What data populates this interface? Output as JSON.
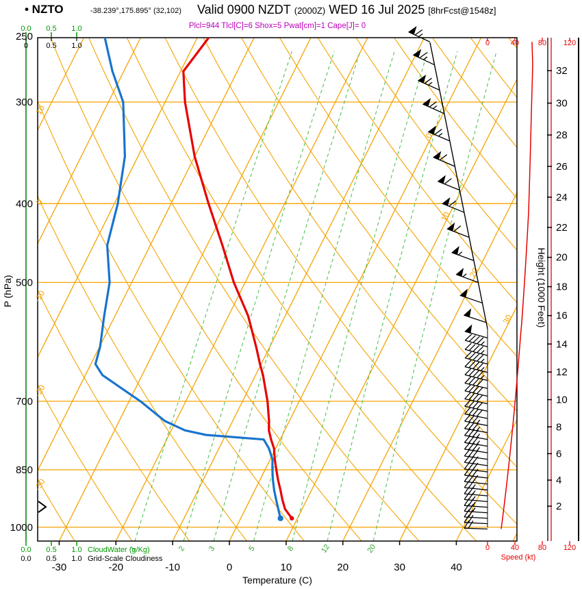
{
  "header": {
    "station_line": "• NZTO",
    "coords": "-38.239°,175.895° (32,102)",
    "valid_time": "Valid 0900 NZDT",
    "valid_z": "(2000Z)",
    "valid_date": "WED 16 Jul 2025",
    "fcst": "[8hrFcst@1548z]",
    "params": "Plcl=944 Tlcl[C]=6 Shox=5 Pwat[cm]=1 Cape[J]= 0"
  },
  "axes": {
    "pressure_label": "P (hPa)",
    "pressure_ticks": [
      250,
      300,
      400,
      500,
      700,
      850,
      1000
    ],
    "pressure_gridlines": [
      300,
      400,
      500,
      700,
      850,
      1000
    ],
    "temp_label": "Temperature (C)",
    "temp_ticks": [
      -30,
      -20,
      -10,
      0,
      10,
      20,
      30,
      40
    ],
    "height_label": "Height (1000 Feet)",
    "height_ticks": [
      2,
      4,
      6,
      8,
      10,
      12,
      14,
      16,
      18,
      20,
      22,
      24,
      26,
      28,
      30,
      32
    ],
    "speed_label": "Speed (kt)",
    "speed_ticks": [
      0,
      40,
      80,
      120
    ],
    "isotherm_labels": [
      0,
      10,
      20,
      30
    ],
    "adiabat_labels": [
      10,
      0,
      -10,
      -20,
      -30
    ],
    "mixing_ratio_lines": [
      1,
      2,
      3,
      5,
      8,
      12,
      20
    ],
    "cloudwater_label": "CloudWater (g/Kg)",
    "cloudiness_label": "Grid-Scale Cloudiness",
    "cloud_scale_green": [
      "0.0",
      "0.5",
      "1.0"
    ],
    "cloud_scale_black_top": [
      "0",
      "0.5",
      "1.0"
    ],
    "cloud_scale_black_bottom": [
      "0.0",
      "0.5",
      "1.0"
    ]
  },
  "colors": {
    "grid_orange": "#F5A300",
    "mixing_green": "#44BB44",
    "green_text": "#009900",
    "cloudwater_line": "#007700",
    "temp_red": "#E60000",
    "dewpoint_blue": "#1874CD",
    "magenta": "#BB00BB",
    "wind_black": "#000000"
  },
  "chart_data": {
    "type": "line",
    "subtype": "skew-t-log-p-sounding",
    "title": "NZTO forecast sounding valid 0900 NZDT (2000Z) WED 16 Jul 2025, 8hr forecast at 1548z",
    "pressure_axis_hPa": {
      "min": 250,
      "max": 1040,
      "scale": "log",
      "ticks": [
        250,
        300,
        400,
        500,
        700,
        850,
        1000
      ]
    },
    "temp_axis_C": {
      "min": -33,
      "max": 45,
      "ticks": [
        -30,
        -20,
        -10,
        0,
        10,
        20,
        30,
        40
      ],
      "skew": "isotherms slanted up-right"
    },
    "height_axis_kft": {
      "min": 2,
      "max": 32,
      "step": 2
    },
    "speed_axis_kt": {
      "min": 0,
      "max": 120,
      "ticks": [
        0,
        40,
        80,
        120
      ]
    },
    "indices": {
      "Plcl": 944,
      "Tlcl_C": 6,
      "Shox": 5,
      "Pwat_cm": 1,
      "Cape_J": 0
    },
    "series_legend": [
      {
        "name": "Temperature",
        "color": "#E60000"
      },
      {
        "name": "Dewpoint",
        "color": "#1874CD"
      },
      {
        "name": "Wind speed profile",
        "color": "#E60000"
      }
    ],
    "sounding": {
      "columns": [
        "pressure_hPa",
        "temperature_C",
        "dewpoint_C"
      ],
      "rows": [
        [
          975,
          9.0,
          7.0
        ],
        [
          950,
          7.0,
          5.8
        ],
        [
          925,
          5.7,
          4.6
        ],
        [
          900,
          4.5,
          3.4
        ],
        [
          875,
          3.2,
          2.3
        ],
        [
          850,
          2.0,
          1.3
        ],
        [
          825,
          0.8,
          0.4
        ],
        [
          800,
          -0.3,
          -1.2
        ],
        [
          780,
          -1.6,
          -2.9
        ],
        [
          770,
          -2.2,
          -13.5
        ],
        [
          760,
          -2.8,
          -17.6
        ],
        [
          740,
          -3.6,
          -22.0
        ],
        [
          700,
          -5.6,
          -28.0
        ],
        [
          650,
          -8.7,
          -37.0
        ],
        [
          630,
          -10.2,
          -39.2
        ],
        [
          600,
          -12.4,
          -39.9
        ],
        [
          550,
          -16.5,
          -41.9
        ],
        [
          500,
          -22.0,
          -43.9
        ],
        [
          450,
          -27.3,
          -47.6
        ],
        [
          400,
          -33.4,
          -49.4
        ],
        [
          350,
          -40.0,
          -52.3
        ],
        [
          300,
          -46.5,
          -57.4
        ],
        [
          275,
          -49.5,
          -62.0
        ],
        [
          250,
          -48.0,
          -66.3
        ]
      ]
    },
    "wind": {
      "columns": [
        "pressure_hPa",
        "direction_deg",
        "speed_kt"
      ],
      "rows": [
        [
          1005,
          272,
          20
        ],
        [
          990,
          273,
          21
        ],
        [
          975,
          273,
          22
        ],
        [
          960,
          274,
          23
        ],
        [
          945,
          274,
          24
        ],
        [
          930,
          275,
          25
        ],
        [
          915,
          275,
          26
        ],
        [
          900,
          276,
          27
        ],
        [
          885,
          276,
          28
        ],
        [
          870,
          277,
          29
        ],
        [
          855,
          277,
          30
        ],
        [
          840,
          278,
          31
        ],
        [
          825,
          278,
          32
        ],
        [
          810,
          279,
          33
        ],
        [
          795,
          279,
          34
        ],
        [
          780,
          280,
          35
        ],
        [
          765,
          280,
          36
        ],
        [
          750,
          281,
          37
        ],
        [
          735,
          281,
          38
        ],
        [
          720,
          282,
          39
        ],
        [
          705,
          282,
          40
        ],
        [
          690,
          283,
          41
        ],
        [
          675,
          283,
          42
        ],
        [
          660,
          284,
          43
        ],
        [
          645,
          284,
          44
        ],
        [
          630,
          285,
          45
        ],
        [
          615,
          285,
          46
        ],
        [
          600,
          286,
          47
        ],
        [
          585,
          286,
          48
        ],
        [
          560,
          288,
          50
        ],
        [
          530,
          289,
          52
        ],
        [
          500,
          290,
          54
        ],
        [
          470,
          290,
          56
        ],
        [
          440,
          291,
          58
        ],
        [
          410,
          292,
          60
        ],
        [
          385,
          292,
          61
        ],
        [
          360,
          293,
          62
        ],
        [
          335,
          293,
          63
        ],
        [
          310,
          294,
          64
        ],
        [
          290,
          294,
          65
        ],
        [
          270,
          295,
          66
        ],
        [
          253,
          295,
          65
        ]
      ]
    }
  }
}
